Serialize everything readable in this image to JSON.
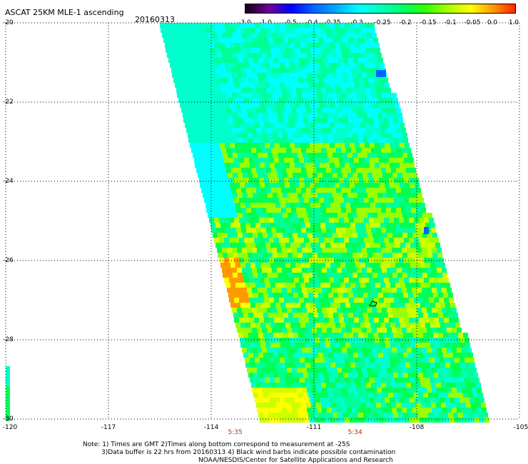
{
  "header": {
    "title": "ASCAT 25KM MLE-1 ascending",
    "date": "20160313"
  },
  "colorbar": {
    "labels": [
      "-3.0",
      "-1.0",
      "-0.5",
      "-0.4",
      "-0.35",
      "-0.3",
      "-0.25",
      "-0.2",
      "-0.15",
      "-0.1",
      "-0.05",
      "0.0",
      "1.0"
    ],
    "colors": [
      "#1a001a",
      "#6b0099",
      "#0000ff",
      "#0066ff",
      "#00aaff",
      "#00ffff",
      "#00ffbb",
      "#00ff66",
      "#33ff00",
      "#aaff00",
      "#ffff00",
      "#ff9900",
      "#ff2200"
    ]
  },
  "axes": {
    "lat_labels": [
      "-20",
      "-22",
      "-24",
      "-26",
      "-28",
      "-30"
    ],
    "lon_labels": [
      "-120",
      "-117",
      "-114",
      "-111",
      "-108",
      "-105"
    ],
    "lat_range": [
      -30,
      -20
    ],
    "lon_range": [
      -120,
      -105
    ],
    "grid": "dotted"
  },
  "pass_times": [
    {
      "label": "5:35",
      "lon": -113.3
    },
    {
      "label": "5:34",
      "lon": -109.8
    }
  ],
  "notes": {
    "line1": "Note: 1) Times are GMT 2)Times along bottom correspond to measurement at -25S",
    "line2": "3)Data buffer is 22 hrs from 20160313 4) Black wind barbs indicate possible contamination",
    "line3": "NOAA/NESDIS/Center for Satellite Applications and Research"
  },
  "swath": {
    "description_colors": {
      "cyan": "#00ffff",
      "aqua": "#00ffcc",
      "green_light": "#00ff99",
      "green": "#00ff55",
      "yellow_green": "#99ff00",
      "lime": "#ccff00",
      "yellow": "#ffff00",
      "orange": "#ff9900",
      "blue": "#0066ff"
    }
  }
}
